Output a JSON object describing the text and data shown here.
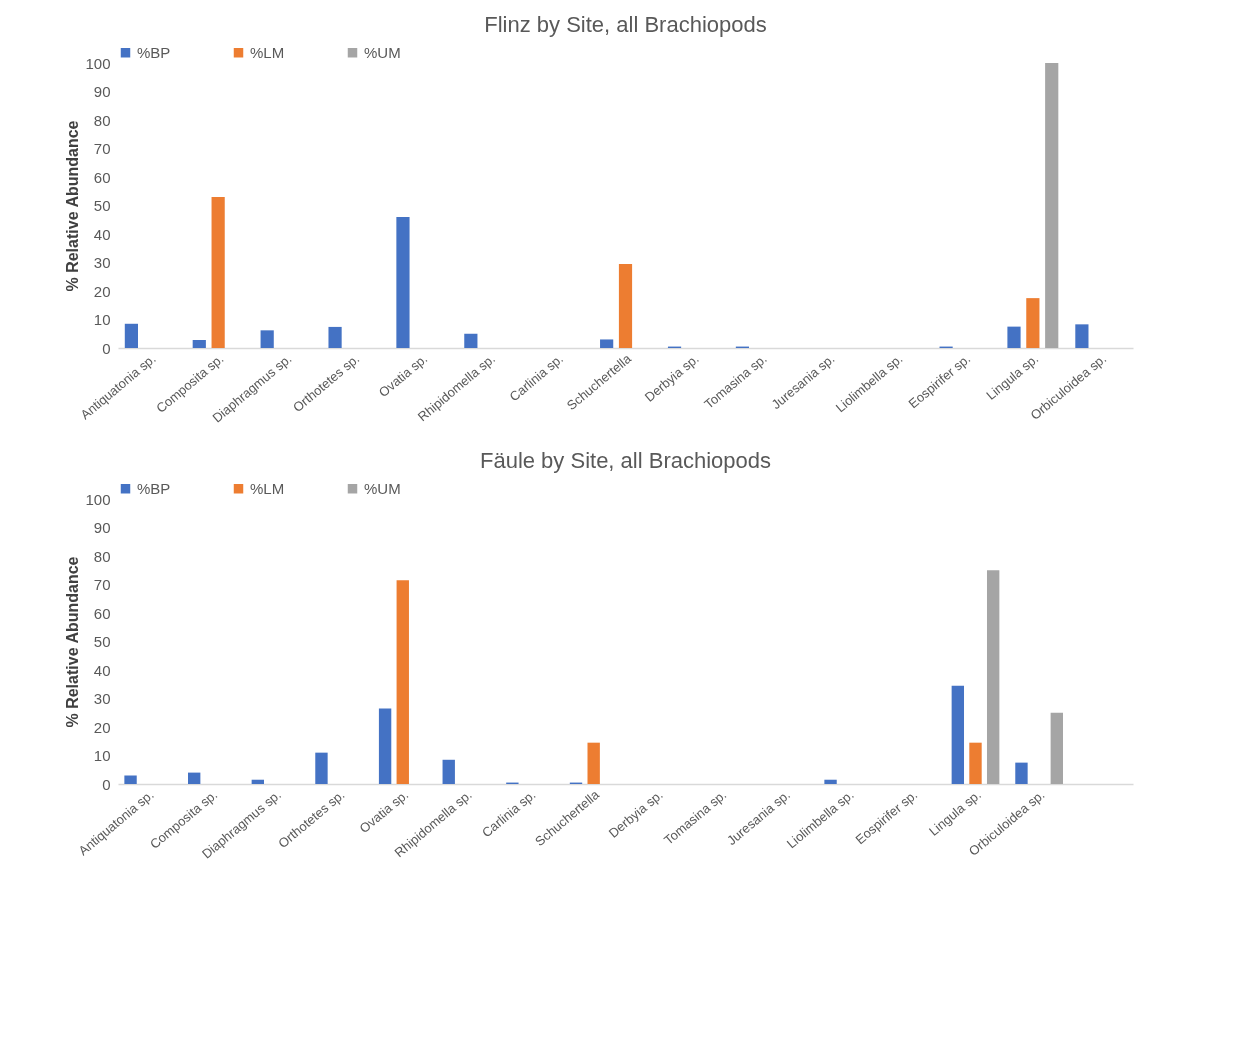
{
  "chart_data": [
    {
      "type": "bar",
      "title": "Flinz by Site, all Brachiopods",
      "ylabel": "% Relative Abundance",
      "categories": [
        "Antiquatonia sp.",
        "Composita sp.",
        "Diaphragmus sp.",
        "Orthotetes sp.",
        "Ovatia sp.",
        "Rhipidomella sp.",
        "Carlinia sp.",
        "Schuchertella",
        "Derbyia sp.",
        "Tomasina sp.",
        "Juresania sp.",
        "Liolimbella sp.",
        "Eospirifer sp.",
        "Lingula sp.",
        "Orbiculoidea sp."
      ],
      "series": [
        {
          "name": "%BP",
          "color": "#4472c4",
          "values": [
            8.5,
            2.8,
            6.2,
            7.4,
            46,
            5,
            0,
            3,
            0.5,
            0.5,
            0,
            0,
            0.5,
            7.5,
            8.3
          ]
        },
        {
          "name": "%LM",
          "color": "#ed7d31",
          "values": [
            0,
            53,
            0,
            0,
            0,
            0,
            0,
            29.5,
            0,
            0,
            0,
            0,
            0,
            17.5,
            0
          ]
        },
        {
          "name": "%UM",
          "color": "#a5a5a5",
          "values": [
            0,
            0,
            0,
            0,
            0,
            0,
            0,
            0,
            0,
            0,
            0,
            0,
            0,
            100,
            0
          ]
        }
      ],
      "ylim": [
        0,
        100
      ],
      "yticks": [
        0,
        10,
        20,
        30,
        40,
        50,
        60,
        70,
        80,
        90,
        100
      ],
      "grid": false,
      "legend": "top"
    },
    {
      "type": "bar",
      "title": "Fäule by Site, all Brachiopods",
      "ylabel": "% Relative Abundance",
      "categories": [
        "Antiquatonia sp.",
        "Composita sp.",
        "Diaphragmus sp.",
        "Orthotetes sp.",
        "Ovatia sp.",
        "Rhipidomella sp.",
        "Carlinia sp.",
        "Schuchertella",
        "Derbyia sp.",
        "Tomasina sp.",
        "Juresania sp.",
        "Liolimbella sp.",
        "Eospirifer sp.",
        "Lingula sp.",
        "Orbiculoidea sp.",
        null
      ],
      "series": [
        {
          "name": "%BP",
          "color": "#4472c4",
          "values": [
            3,
            4,
            1.5,
            11,
            26.5,
            8.5,
            0.5,
            0.5,
            0,
            0,
            0,
            1.5,
            0,
            34.5,
            7.5,
            null
          ]
        },
        {
          "name": "%LM",
          "color": "#ed7d31",
          "values": [
            0,
            0,
            0,
            0,
            71.5,
            0,
            0,
            14.5,
            0,
            0,
            0,
            0,
            0,
            14.5,
            0,
            null
          ]
        },
        {
          "name": "%UM",
          "color": "#a5a5a5",
          "values": [
            0,
            0,
            0,
            0,
            0,
            0,
            0,
            0,
            0,
            0,
            0,
            0,
            0,
            75,
            25,
            null
          ]
        }
      ],
      "ylim": [
        0,
        100
      ],
      "yticks": [
        0,
        10,
        20,
        30,
        40,
        50,
        60,
        70,
        80,
        90,
        100
      ],
      "grid": false,
      "legend": "top"
    }
  ]
}
